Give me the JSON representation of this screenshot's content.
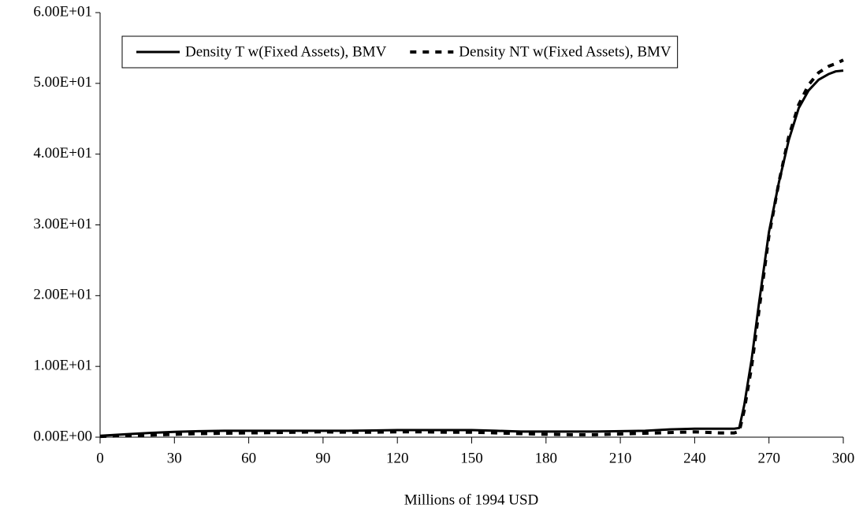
{
  "chart_data": {
    "type": "line",
    "x_label": "Millions of 1994 USD",
    "x": [
      0,
      10,
      20,
      30,
      40,
      50,
      60,
      70,
      80,
      90,
      100,
      110,
      120,
      130,
      140,
      150,
      160,
      170,
      180,
      190,
      200,
      210,
      220,
      230,
      240,
      250,
      256,
      258,
      260,
      263,
      266,
      270,
      274,
      278,
      282,
      286,
      290,
      294,
      297,
      300
    ],
    "series": [
      {
        "name": "Density T w(Fixed Assets), BMV",
        "color": "#000000",
        "line_style": "solid",
        "values": [
          0.2,
          0.4,
          0.6,
          0.75,
          0.85,
          0.9,
          0.9,
          0.9,
          0.9,
          0.9,
          0.9,
          0.95,
          1.0,
          1.0,
          1.0,
          1.0,
          0.9,
          0.8,
          0.8,
          0.8,
          0.8,
          0.85,
          0.9,
          1.1,
          1.2,
          1.2,
          1.2,
          1.3,
          4.5,
          11,
          19,
          29,
          36,
          42,
          46.5,
          49,
          50.5,
          51.3,
          51.7,
          51.8
        ]
      },
      {
        "name": "Density NT w(Fixed Assets), BMV",
        "color": "#000000",
        "line_style": "dashed",
        "values": [
          0.1,
          0.2,
          0.3,
          0.4,
          0.5,
          0.55,
          0.6,
          0.65,
          0.7,
          0.75,
          0.7,
          0.7,
          0.75,
          0.75,
          0.7,
          0.7,
          0.6,
          0.5,
          0.4,
          0.35,
          0.35,
          0.45,
          0.55,
          0.65,
          0.75,
          0.6,
          0.6,
          0.8,
          3.8,
          10,
          18,
          28.5,
          36,
          42.5,
          47,
          49.8,
          51.5,
          52.4,
          52.8,
          53.3
        ]
      }
    ],
    "xlim": [
      0,
      300
    ],
    "xticks": [
      0,
      30,
      60,
      90,
      120,
      150,
      180,
      210,
      240,
      270,
      300
    ],
    "ylim": [
      0,
      60
    ],
    "yticks": [
      {
        "value": 0,
        "label": "0.00E+00"
      },
      {
        "value": 10,
        "label": "1.00E+01"
      },
      {
        "value": 20,
        "label": "2.00E+01"
      },
      {
        "value": 30,
        "label": "3.00E+01"
      },
      {
        "value": 40,
        "label": "4.00E+01"
      },
      {
        "value": 50,
        "label": "5.00E+01"
      },
      {
        "value": 60,
        "label": "6.00E+01"
      }
    ],
    "grid": false,
    "legend": "upper left"
  }
}
